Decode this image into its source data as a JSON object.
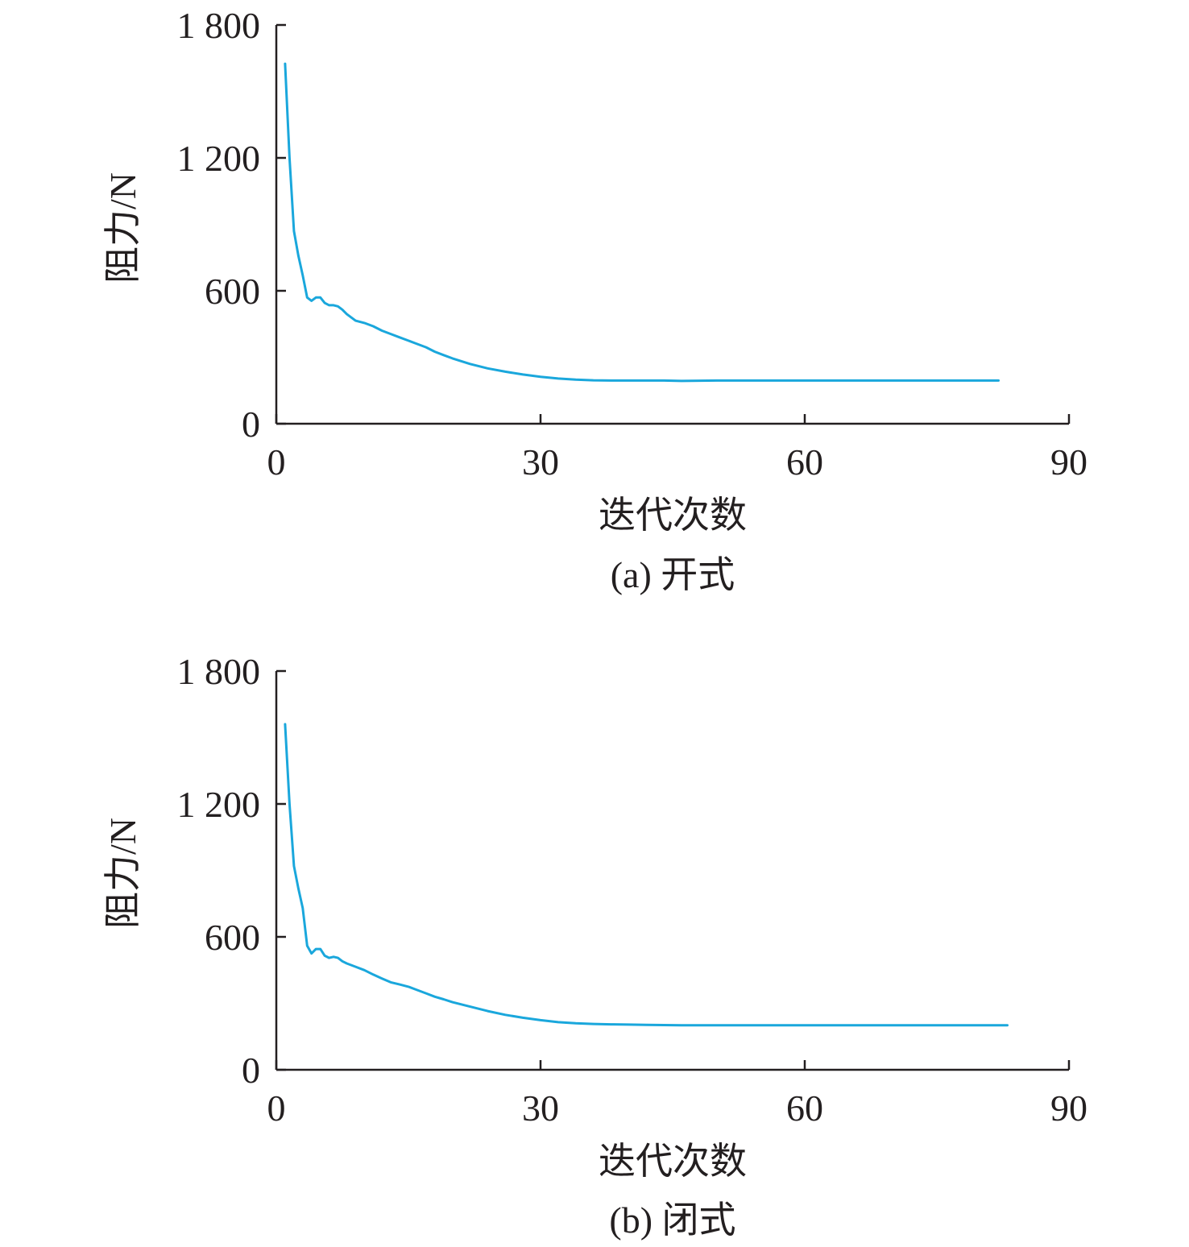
{
  "chart_data": [
    {
      "type": "line",
      "caption": "(a) 开式",
      "xlabel": "迭代次数",
      "ylabel": "阻力/N",
      "xlim": [
        0,
        90
      ],
      "ylim": [
        0,
        1800
      ],
      "xticks": [
        0,
        30,
        60,
        90
      ],
      "xtick_labels": [
        "0",
        "30",
        "60",
        "90"
      ],
      "yticks": [
        0,
        600,
        1200,
        1800
      ],
      "ytick_labels": [
        "0",
        "600",
        "1 200",
        "1 800"
      ],
      "grid": false,
      "line_color": "#1aa7dc",
      "x": [
        1,
        1.5,
        2,
        2.5,
        3,
        3.5,
        4,
        4.5,
        5,
        5.5,
        6,
        6.5,
        7,
        7.5,
        8,
        9,
        10,
        11,
        12,
        13,
        14,
        15,
        16,
        17,
        18,
        19,
        20,
        22,
        24,
        26,
        28,
        30,
        32,
        34,
        36,
        38,
        40,
        42,
        44,
        46,
        50,
        55,
        60,
        65,
        70,
        75,
        80,
        82
      ],
      "y": [
        1625,
        1200,
        870,
        760,
        670,
        570,
        555,
        570,
        570,
        545,
        535,
        535,
        530,
        515,
        495,
        465,
        455,
        440,
        420,
        405,
        390,
        375,
        360,
        345,
        325,
        310,
        295,
        270,
        250,
        235,
        222,
        212,
        204,
        199,
        196,
        195,
        195,
        195,
        195,
        193,
        195,
        195,
        195,
        195,
        195,
        195,
        195,
        195
      ]
    },
    {
      "type": "line",
      "caption": "(b) 闭式",
      "xlabel": "迭代次数",
      "ylabel": "阻力/N",
      "xlim": [
        0,
        90
      ],
      "ylim": [
        0,
        1800
      ],
      "xticks": [
        0,
        30,
        60,
        90
      ],
      "xtick_labels": [
        "0",
        "30",
        "60",
        "90"
      ],
      "yticks": [
        0,
        600,
        1200,
        1800
      ],
      "ytick_labels": [
        "0",
        "600",
        "1 200",
        "1 800"
      ],
      "grid": false,
      "line_color": "#1aa7dc",
      "x": [
        1,
        1.5,
        2,
        2.5,
        3,
        3.5,
        4,
        4.5,
        5,
        5.5,
        6,
        6.5,
        7,
        7.5,
        8,
        9,
        10,
        11,
        12,
        13,
        14,
        15,
        16,
        17,
        18,
        19,
        20,
        22,
        24,
        26,
        28,
        30,
        32,
        34,
        36,
        38,
        40,
        42,
        44,
        46,
        50,
        55,
        60,
        65,
        70,
        75,
        80,
        83
      ],
      "y": [
        1560,
        1200,
        920,
        820,
        730,
        560,
        525,
        545,
        545,
        515,
        505,
        510,
        505,
        490,
        480,
        465,
        450,
        430,
        412,
        395,
        385,
        375,
        360,
        345,
        330,
        318,
        305,
        285,
        265,
        248,
        235,
        224,
        215,
        210,
        207,
        205,
        204,
        203,
        202,
        201,
        201,
        201,
        201,
        201,
        201,
        201,
        201,
        201
      ]
    }
  ]
}
